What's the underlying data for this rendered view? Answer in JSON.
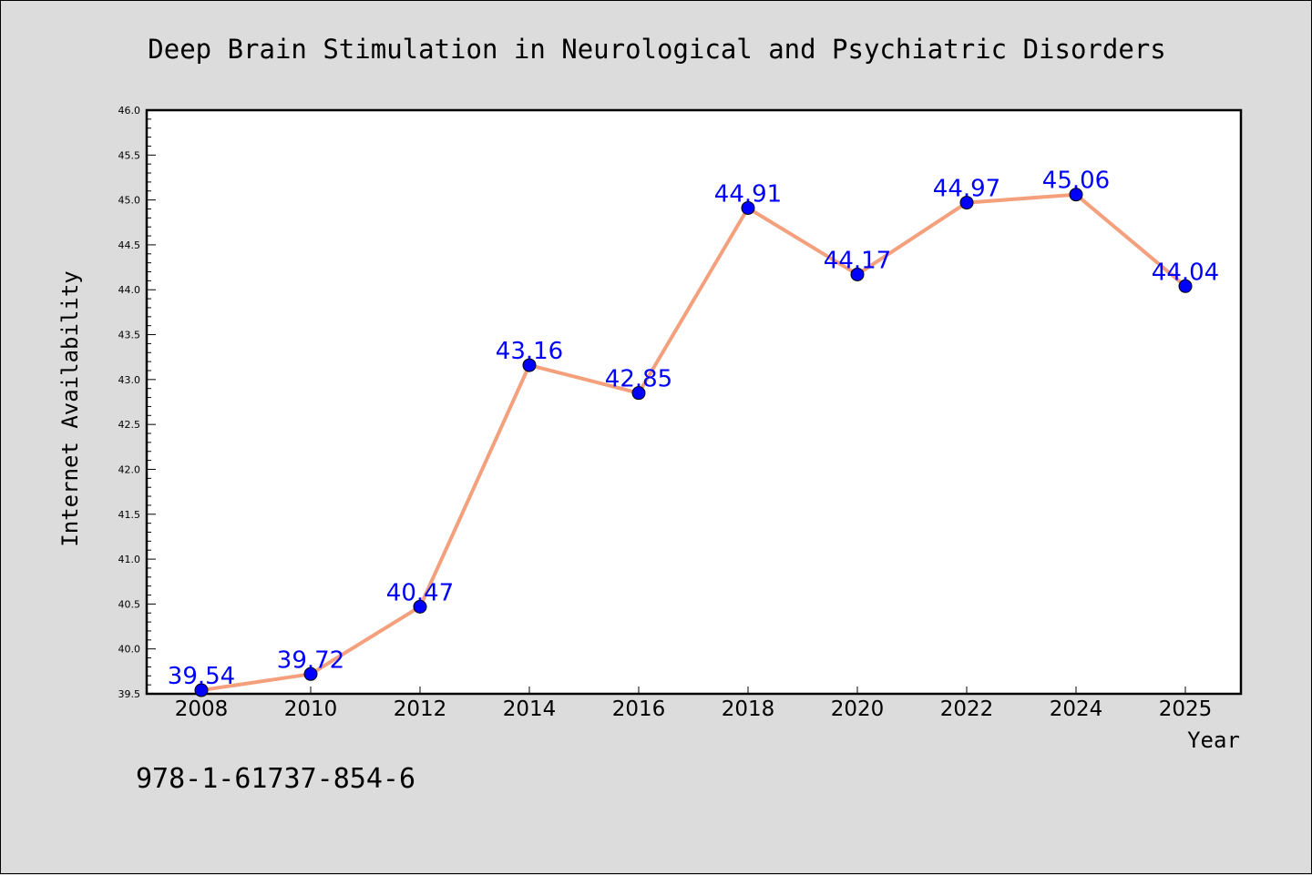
{
  "chart_data": {
    "type": "line",
    "title": "Deep Brain Stimulation in Neurological and Psychiatric Disorders",
    "xlabel": "Year",
    "ylabel": "Internet Availability",
    "categories": [
      "2008",
      "2010",
      "2012",
      "2014",
      "2016",
      "2018",
      "2020",
      "2022",
      "2024",
      "2025"
    ],
    "values": [
      39.54,
      39.72,
      40.47,
      43.16,
      42.85,
      44.91,
      44.17,
      44.97,
      45.06,
      44.04
    ],
    "data_labels": [
      "39.54",
      "39.72",
      "40.47",
      "43.16",
      "42.85",
      "44.91",
      "44.17",
      "44.97",
      "45.06",
      "44.04"
    ],
    "ylim": [
      39.5,
      46.0
    ],
    "yticks": [
      "39.5",
      "40.0",
      "40.5",
      "41.0",
      "41.5",
      "42.0",
      "42.5",
      "43.0",
      "43.5",
      "44.0",
      "44.5",
      "45.0",
      "45.5",
      "46.0"
    ],
    "grid": false,
    "legend": "none"
  },
  "annotation": {
    "isbn": "978-1-61737-854-6"
  },
  "colors": {
    "background": "#dcdcdc",
    "plot_background": "#ffffff",
    "line": "#f4a07c",
    "marker": "#0000ff",
    "data_label": "#0000ff"
  }
}
